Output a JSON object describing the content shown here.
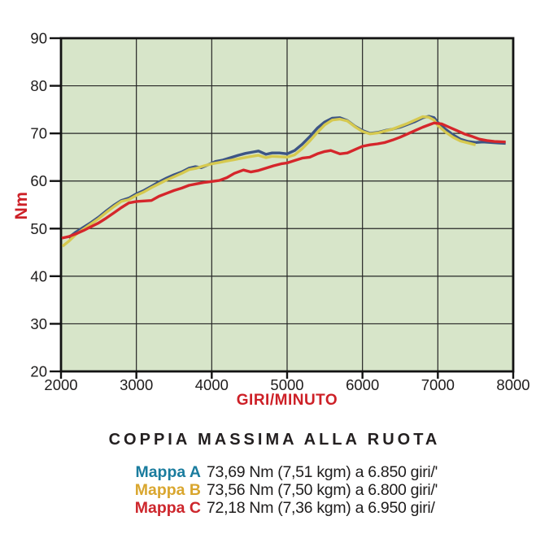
{
  "colors": {
    "axis_label_red": "#cd2027",
    "plot_background": "#d7e5c9",
    "grid_line": "#262626",
    "axis_border": "#121212",
    "tick_text": "#1e1c1c",
    "title_text": "#231f20",
    "value_text": "#1e1c1c"
  },
  "chart_data": {
    "type": "line",
    "title": "COPPIA MASSIMA ALLA RUOTA",
    "xlabel": "GIRI/MINUTO",
    "ylabel": "Nm",
    "xlim": [
      2000,
      8000
    ],
    "ylim": [
      20,
      90
    ],
    "x_ticks": [
      2000,
      3000,
      4000,
      5000,
      6000,
      7000,
      8000
    ],
    "y_ticks": [
      20,
      30,
      40,
      50,
      60,
      70,
      80,
      90
    ],
    "grid": true,
    "legend_position": "below-chart-caption",
    "series": [
      {
        "name": "Mappa A",
        "color": "#3d5585",
        "points": [
          [
            2100,
            48.1
          ],
          [
            2200,
            49.3
          ],
          [
            2300,
            50.3
          ],
          [
            2400,
            51.3
          ],
          [
            2500,
            52.4
          ],
          [
            2600,
            53.7
          ],
          [
            2700,
            54.9
          ],
          [
            2800,
            55.9
          ],
          [
            2900,
            56.4
          ],
          [
            3000,
            57.3
          ],
          [
            3100,
            58.0
          ],
          [
            3200,
            58.9
          ],
          [
            3300,
            59.8
          ],
          [
            3400,
            60.6
          ],
          [
            3500,
            61.3
          ],
          [
            3600,
            61.9
          ],
          [
            3700,
            62.7
          ],
          [
            3780,
            63.0
          ],
          [
            3860,
            62.8
          ],
          [
            3950,
            63.4
          ],
          [
            4050,
            64.1
          ],
          [
            4150,
            64.4
          ],
          [
            4250,
            64.9
          ],
          [
            4350,
            65.4
          ],
          [
            4450,
            65.8
          ],
          [
            4550,
            66.1
          ],
          [
            4620,
            66.3
          ],
          [
            4720,
            65.6
          ],
          [
            4800,
            65.9
          ],
          [
            4900,
            65.9
          ],
          [
            5000,
            65.7
          ],
          [
            5100,
            66.4
          ],
          [
            5200,
            67.7
          ],
          [
            5300,
            69.3
          ],
          [
            5400,
            71.1
          ],
          [
            5500,
            72.4
          ],
          [
            5600,
            73.2
          ],
          [
            5700,
            73.3
          ],
          [
            5800,
            72.7
          ],
          [
            5900,
            71.5
          ],
          [
            6000,
            70.6
          ],
          [
            6100,
            70.0
          ],
          [
            6200,
            70.2
          ],
          [
            6300,
            70.6
          ],
          [
            6400,
            70.9
          ],
          [
            6500,
            71.3
          ],
          [
            6600,
            71.9
          ],
          [
            6700,
            72.5
          ],
          [
            6800,
            73.3
          ],
          [
            6880,
            73.6
          ],
          [
            6950,
            73.3
          ],
          [
            7000,
            72.3
          ],
          [
            7100,
            70.9
          ],
          [
            7200,
            69.7
          ],
          [
            7300,
            68.8
          ],
          [
            7400,
            68.3
          ],
          [
            7500,
            68.1
          ],
          [
            7600,
            68.2
          ],
          [
            7700,
            68.1
          ],
          [
            7800,
            68.0
          ],
          [
            7900,
            67.9
          ]
        ]
      },
      {
        "name": "Mappa B",
        "color": "#d6c94f",
        "points": [
          [
            2020,
            46.3
          ],
          [
            2100,
            47.3
          ],
          [
            2200,
            48.8
          ],
          [
            2300,
            49.9
          ],
          [
            2400,
            51.0
          ],
          [
            2500,
            52.1
          ],
          [
            2600,
            53.4
          ],
          [
            2700,
            54.6
          ],
          [
            2800,
            55.7
          ],
          [
            2900,
            56.1
          ],
          [
            3000,
            57.0
          ],
          [
            3100,
            57.7
          ],
          [
            3200,
            58.6
          ],
          [
            3300,
            59.4
          ],
          [
            3400,
            60.2
          ],
          [
            3500,
            60.9
          ],
          [
            3600,
            61.6
          ],
          [
            3700,
            62.4
          ],
          [
            3800,
            62.7
          ],
          [
            3900,
            63.2
          ],
          [
            4000,
            63.6
          ],
          [
            4100,
            63.9
          ],
          [
            4200,
            64.2
          ],
          [
            4300,
            64.5
          ],
          [
            4400,
            64.8
          ],
          [
            4500,
            65.1
          ],
          [
            4620,
            65.4
          ],
          [
            4720,
            64.9
          ],
          [
            4800,
            65.2
          ],
          [
            4900,
            65.1
          ],
          [
            5000,
            65.0
          ],
          [
            5100,
            65.5
          ],
          [
            5200,
            66.8
          ],
          [
            5300,
            68.4
          ],
          [
            5400,
            70.2
          ],
          [
            5500,
            71.8
          ],
          [
            5600,
            72.8
          ],
          [
            5700,
            73.0
          ],
          [
            5800,
            72.6
          ],
          [
            5900,
            71.4
          ],
          [
            6000,
            70.4
          ],
          [
            6100,
            69.9
          ],
          [
            6200,
            70.1
          ],
          [
            6300,
            70.5
          ],
          [
            6400,
            70.9
          ],
          [
            6500,
            71.5
          ],
          [
            6600,
            72.1
          ],
          [
            6700,
            72.8
          ],
          [
            6800,
            73.5
          ],
          [
            6880,
            73.4
          ],
          [
            6950,
            72.8
          ],
          [
            7000,
            71.7
          ],
          [
            7100,
            70.3
          ],
          [
            7200,
            69.2
          ],
          [
            7300,
            68.4
          ],
          [
            7400,
            68.0
          ],
          [
            7500,
            67.6
          ]
        ]
      },
      {
        "name": "Mappa C",
        "color": "#d5262b",
        "points": [
          [
            2010,
            48.0
          ],
          [
            2100,
            48.3
          ],
          [
            2200,
            48.9
          ],
          [
            2300,
            49.6
          ],
          [
            2400,
            50.4
          ],
          [
            2500,
            51.2
          ],
          [
            2600,
            52.2
          ],
          [
            2700,
            53.3
          ],
          [
            2800,
            54.4
          ],
          [
            2900,
            55.4
          ],
          [
            3000,
            55.7
          ],
          [
            3100,
            55.8
          ],
          [
            3200,
            55.9
          ],
          [
            3300,
            56.8
          ],
          [
            3400,
            57.4
          ],
          [
            3500,
            58.0
          ],
          [
            3600,
            58.5
          ],
          [
            3700,
            59.1
          ],
          [
            3800,
            59.4
          ],
          [
            3900,
            59.7
          ],
          [
            4000,
            59.9
          ],
          [
            4100,
            60.1
          ],
          [
            4200,
            60.7
          ],
          [
            4300,
            61.6
          ],
          [
            4420,
            62.3
          ],
          [
            4520,
            61.9
          ],
          [
            4620,
            62.2
          ],
          [
            4720,
            62.7
          ],
          [
            4820,
            63.2
          ],
          [
            4920,
            63.6
          ],
          [
            5000,
            63.8
          ],
          [
            5100,
            64.3
          ],
          [
            5200,
            64.8
          ],
          [
            5300,
            65.0
          ],
          [
            5400,
            65.7
          ],
          [
            5500,
            66.2
          ],
          [
            5580,
            66.4
          ],
          [
            5700,
            65.7
          ],
          [
            5800,
            65.9
          ],
          [
            5900,
            66.6
          ],
          [
            6000,
            67.3
          ],
          [
            6100,
            67.6
          ],
          [
            6200,
            67.8
          ],
          [
            6300,
            68.1
          ],
          [
            6400,
            68.6
          ],
          [
            6500,
            69.2
          ],
          [
            6600,
            69.9
          ],
          [
            6700,
            70.6
          ],
          [
            6800,
            71.3
          ],
          [
            6900,
            71.9
          ],
          [
            6950,
            72.2
          ],
          [
            7050,
            72.0
          ],
          [
            7150,
            71.3
          ],
          [
            7250,
            70.6
          ],
          [
            7350,
            69.9
          ],
          [
            7450,
            69.4
          ],
          [
            7550,
            68.8
          ],
          [
            7650,
            68.5
          ],
          [
            7750,
            68.3
          ],
          [
            7900,
            68.2
          ]
        ]
      }
    ]
  },
  "caption": {
    "title": "COPPIA MASSIMA ALLA RUOTA",
    "rows": [
      {
        "label": "Mappa A",
        "color": "#1a7c9e",
        "value": "73,69 Nm (7,51 kgm) a 6.850 giri/'"
      },
      {
        "label": "Mappa B",
        "color": "#d9a62e",
        "value": "73,56 Nm (7,50 kgm) a 6.800 giri/'"
      },
      {
        "label": "Mappa C",
        "color": "#cd262c",
        "value": "72,18 Nm (7,36 kgm) a 6.950 giri/"
      }
    ]
  }
}
